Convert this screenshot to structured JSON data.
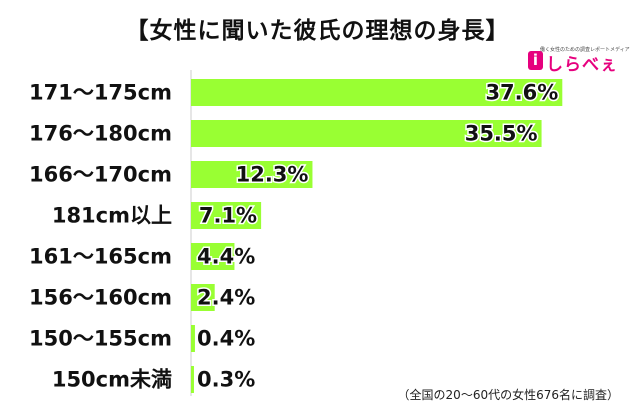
{
  "chart_data": {
    "type": "bar",
    "orientation": "horizontal",
    "title": "【女性に聞いた彼氏の理想の身長】",
    "categories": [
      "171〜175cm",
      "176〜180cm",
      "166〜170cm",
      "181cm以上",
      "161〜165cm",
      "156〜160cm",
      "150〜155cm",
      "150cm未満"
    ],
    "values": [
      37.6,
      35.5,
      12.3,
      7.1,
      4.4,
      2.4,
      0.4,
      0.3
    ],
    "value_labels": [
      "37.6%",
      "35.5%",
      "12.3%",
      "7.1%",
      "4.4%",
      "2.4%",
      "0.4%",
      "0.3%"
    ],
    "unit": "%",
    "bar_color": "#99ff33",
    "xlim": [
      0,
      40
    ],
    "grid": false,
    "source_note": "（全国の20〜60代の女性676名に調査）"
  },
  "logo": {
    "tagline": "働く女性のための調査レポートメディア",
    "mark": "i",
    "text": "しらべぇ",
    "color": "#e6007e"
  }
}
